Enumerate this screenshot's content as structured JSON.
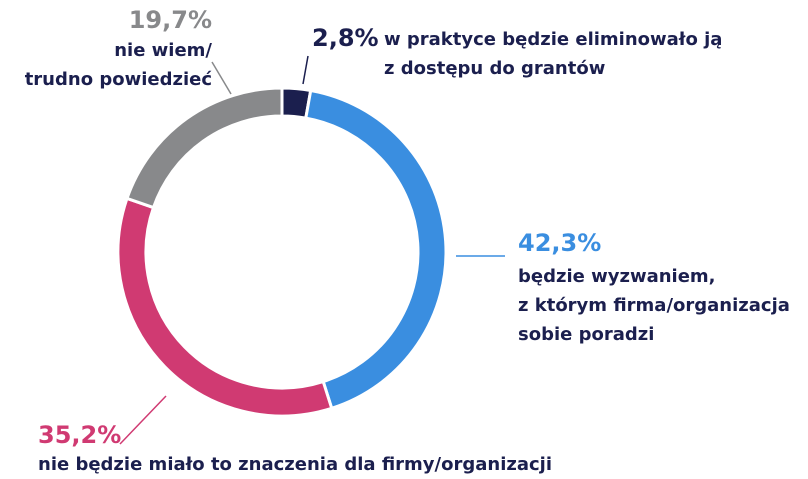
{
  "chart_data": {
    "type": "donut",
    "categories": [
      "w praktyce będzie eliminowało ją\nz dostępu do grantów",
      "będzie wyzwaniem,\nz którym firma/organizacja\nsobie poradzi",
      "nie będzie miało to znaczenia dla firmy/organizacji",
      "nie wiem/\ntrudno powiedzieć"
    ],
    "values": [
      2.8,
      42.3,
      35.2,
      19.7
    ],
    "value_labels": [
      "2,8%",
      "42,3%",
      "35,2%",
      "19,7%"
    ],
    "colors": [
      "#1b1f4e",
      "#3a8ee0",
      "#d03a72",
      "#88898b"
    ]
  }
}
